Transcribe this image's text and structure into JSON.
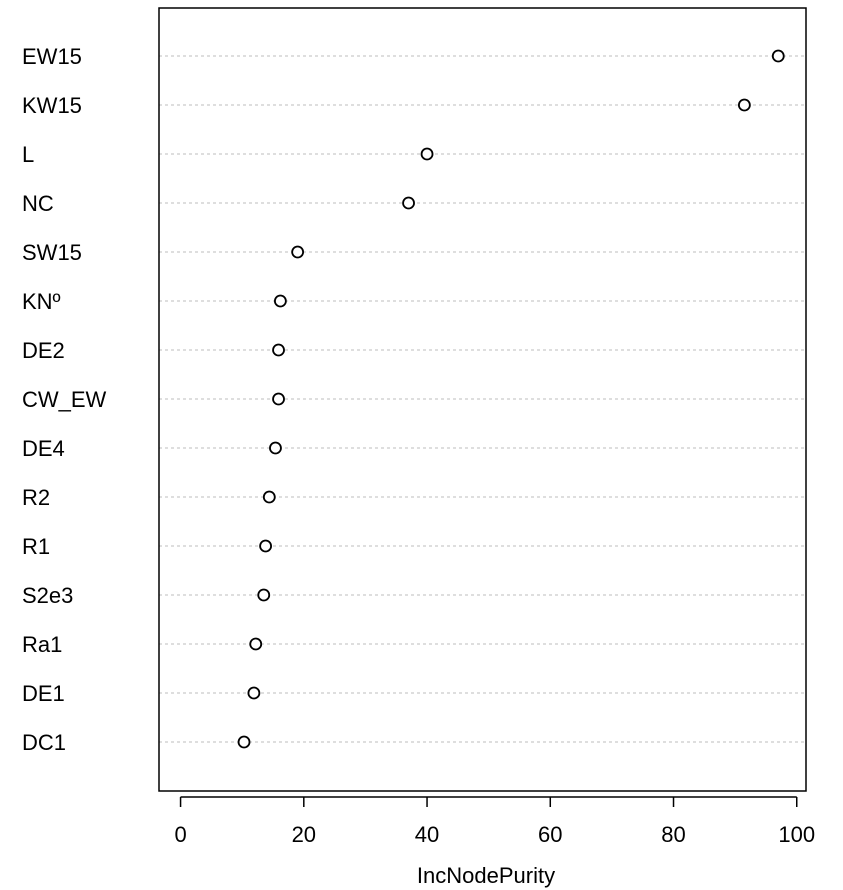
{
  "chart_data": {
    "type": "scatter",
    "variant": "dotchart",
    "title": "",
    "xlabel": "IncNodePurity",
    "ylabel": "",
    "xlim": [
      -3.5,
      101.5
    ],
    "xticks": [
      0,
      20,
      40,
      60,
      80,
      100
    ],
    "grid": "dotted horizontal lines per category",
    "categories": [
      "EW15",
      "KW15",
      "L",
      "NC",
      "SW15",
      "KNº",
      "DE2",
      "CW_EW",
      "DE4",
      "R2",
      "R1",
      "S2e3",
      "Ra1",
      "DE1",
      "DC1"
    ],
    "values": [
      97.0,
      91.5,
      40.0,
      37.0,
      19.0,
      16.2,
      15.9,
      15.9,
      15.4,
      14.4,
      13.8,
      13.5,
      12.2,
      11.9,
      10.3
    ]
  },
  "colors": {
    "axis": "#000000",
    "grid": "#bdbdbd",
    "marker_stroke": "#000000",
    "marker_fill": "#ffffff"
  }
}
